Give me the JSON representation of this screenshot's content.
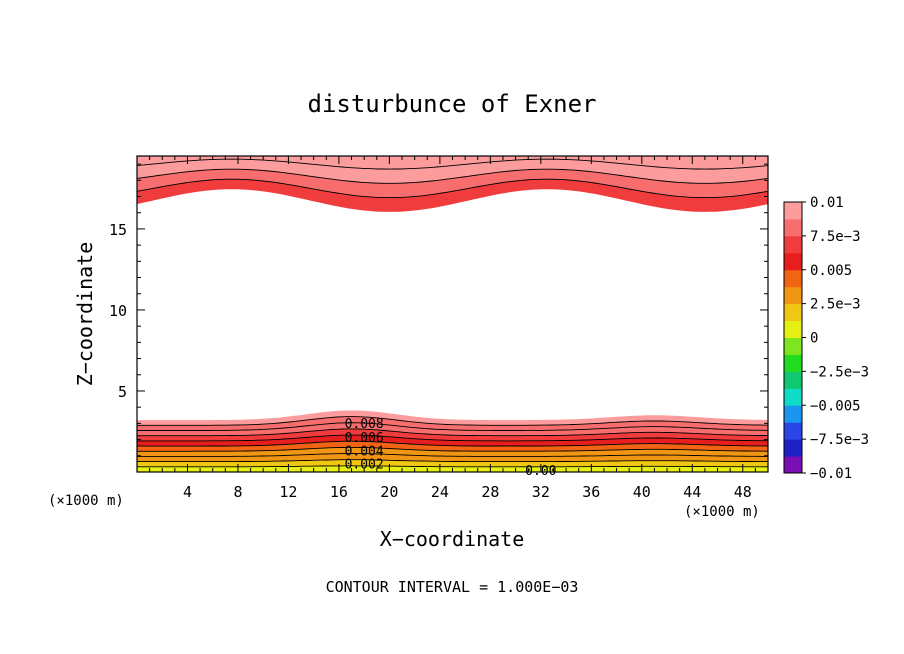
{
  "chart_data": {
    "type": "contour",
    "title": "disturbunce of Exner",
    "xlabel": "X−coordinate",
    "ylabel": "Z−coordinate",
    "x_unit_left": "(×1000 m)",
    "x_unit_right": "(×1000 m)",
    "footer": "CONTOUR INTERVAL = 1.000E−03",
    "xlim": [
      0,
      50
    ],
    "ylim": [
      0,
      19.5
    ],
    "x_ticks": [
      4,
      8,
      12,
      16,
      20,
      24,
      28,
      32,
      36,
      40,
      44,
      48
    ],
    "x_tick_labels": [
      "4",
      "8",
      "12",
      "16",
      "20",
      "24",
      "28",
      "32",
      "36",
      "40",
      "44",
      "48"
    ],
    "y_ticks": [
      5,
      10,
      15
    ],
    "y_tick_labels": [
      "5",
      "10",
      "15"
    ],
    "contour_interval": 0.001,
    "colorbar": {
      "levels": [
        -0.01,
        -0.0075,
        -0.005,
        -0.0025,
        0,
        0.0025,
        0.005,
        0.0075,
        0.01
      ],
      "labels": [
        "−0.01",
        "−7.5e−3",
        "−0.005",
        "−2.5e−3",
        "0",
        "2.5e−3",
        "0.005",
        "7.5e−3",
        "0.01"
      ],
      "colors": [
        "#7a10b4",
        "#2020c8",
        "#2a46e6",
        "#1a96f0",
        "#10dcc8",
        "#10c870",
        "#22dc22",
        "#7ee61e",
        "#e6f014",
        "#f0c814",
        "#f09614",
        "#f06414",
        "#e61e1e",
        "#f03c3c",
        "#f86e6e",
        "#fc9c9c"
      ]
    },
    "contour_labels": [
      {
        "text": "0.008",
        "x": 18.0,
        "z": 2.95
      },
      {
        "text": "0.006",
        "x": 18.0,
        "z": 2.1
      },
      {
        "text": "0.004",
        "x": 18.0,
        "z": 1.25
      },
      {
        "text": "0.002",
        "x": 18.0,
        "z": 0.45
      },
      {
        "text": "0.00",
        "x": 32.0,
        "z": 0.05
      }
    ],
    "upper_band": {
      "base": 16.75,
      "amplitude": 0.7,
      "period": 25,
      "min_at": [
        20,
        45
      ],
      "value_range": [
        0.007,
        0.01
      ]
    },
    "lower_band": {
      "base": 3.2,
      "amplitude": 0.45,
      "bumps_at": [
        17,
        41
      ],
      "value_range": [
        0.0,
        0.01
      ]
    }
  }
}
